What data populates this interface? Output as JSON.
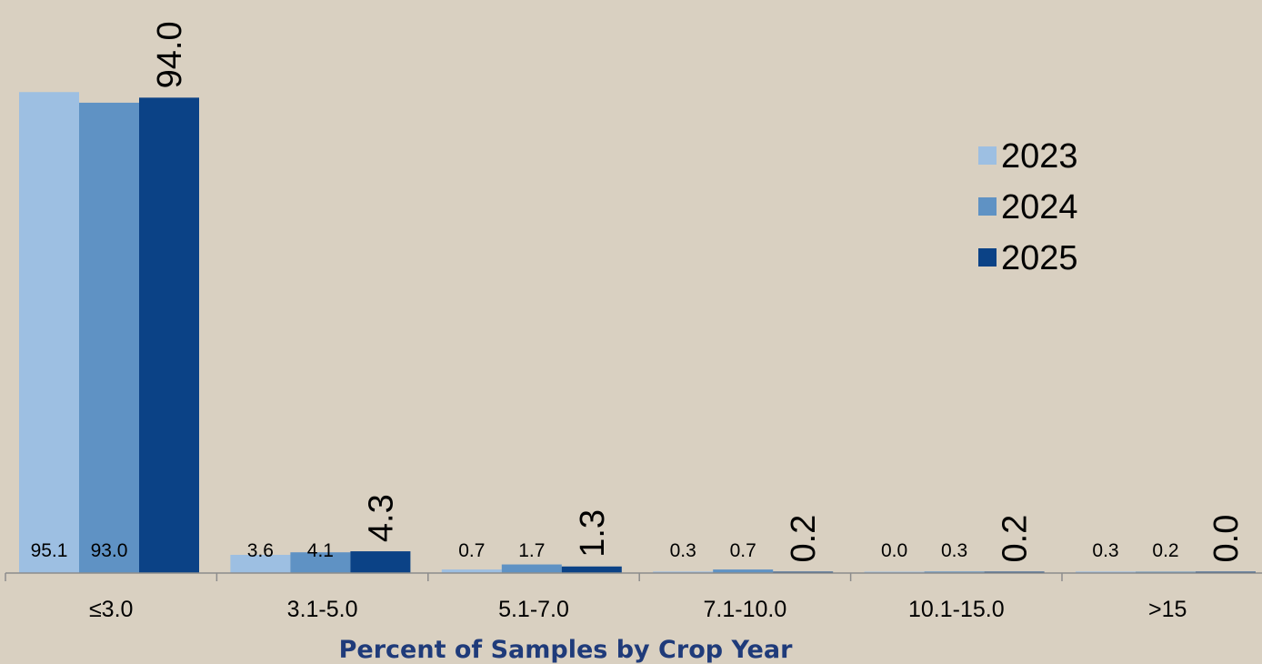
{
  "chart_data": {
    "type": "bar",
    "title": "",
    "xlabel": "Percent of Samples by Crop Year",
    "ylabel": "",
    "categories": [
      "≤3.0",
      "3.1-5.0",
      "5.1-7.0",
      "7.1-10.0",
      "10.1-15.0",
      ">15"
    ],
    "series": [
      {
        "name": "2023",
        "color": "#9dbfe2",
        "values": [
          95.1,
          3.6,
          0.7,
          0.3,
          0.0,
          0.3
        ],
        "labels": [
          "95.1",
          "3.6",
          "0.7",
          "0.3",
          "0.0",
          "0.3"
        ]
      },
      {
        "name": "2024",
        "color": "#5f92c4",
        "values": [
          93.0,
          4.1,
          1.7,
          0.7,
          0.3,
          0.2
        ],
        "labels": [
          "93.0",
          "4.1",
          "1.7",
          "0.7",
          "0.3",
          "0.2"
        ]
      },
      {
        "name": "2025",
        "color": "#0b4286",
        "values": [
          94.0,
          4.3,
          1.3,
          0.2,
          0.2,
          0.0
        ],
        "labels": [
          "94.0",
          "4.3",
          "1.3",
          "0.2",
          "0.2",
          "0.0"
        ]
      }
    ],
    "ylim": [
      0,
      100
    ],
    "grid": false,
    "legend": "right",
    "background": "#d9d0c1",
    "xlabel_color": "#1f3b7a"
  }
}
